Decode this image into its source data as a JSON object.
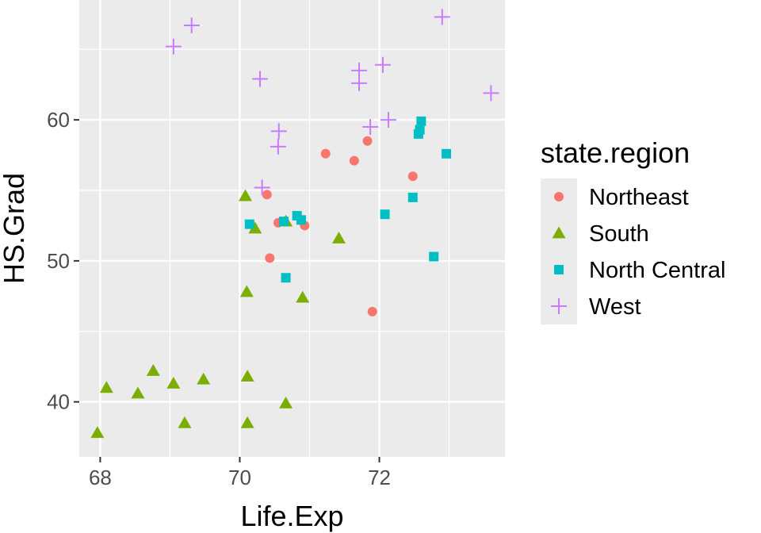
{
  "chart_data": {
    "type": "scatter",
    "title": "",
    "xlabel": "Life.Exp",
    "ylabel": "HS.Grad",
    "xlim": [
      67.7,
      73.8
    ],
    "ylim": [
      36.1,
      68.5
    ],
    "x_ticks": [
      68,
      70,
      72
    ],
    "x_tick_labels": [
      "68",
      "70",
      "72"
    ],
    "y_ticks": [
      40,
      50,
      60
    ],
    "y_tick_labels": [
      "40",
      "50",
      "60"
    ],
    "grid": true,
    "legend": {
      "title": "state.region",
      "position": "right",
      "entries": [
        "Northeast",
        "South",
        "North Central",
        "West"
      ]
    },
    "series": [
      {
        "name": "Northeast",
        "shape": "circle",
        "color": "#F8766D",
        "points": [
          [
            72.48,
            56.0
          ],
          [
            71.83,
            58.5
          ],
          [
            71.23,
            57.6
          ],
          [
            71.64,
            57.1
          ],
          [
            70.39,
            54.7
          ],
          [
            70.55,
            52.7
          ],
          [
            70.43,
            50.2
          ],
          [
            70.93,
            52.5
          ],
          [
            71.9,
            46.4
          ]
        ]
      },
      {
        "name": "South",
        "shape": "triangle",
        "color": "#7CAE00",
        "points": [
          [
            67.96,
            37.8
          ],
          [
            68.09,
            41.0
          ],
          [
            68.54,
            40.6
          ],
          [
            68.76,
            42.2
          ],
          [
            69.05,
            41.3
          ],
          [
            69.21,
            38.5
          ],
          [
            69.48,
            41.6
          ],
          [
            70.11,
            41.8
          ],
          [
            70.11,
            38.5
          ],
          [
            70.66,
            39.9
          ],
          [
            70.08,
            54.6
          ],
          [
            70.22,
            52.3
          ],
          [
            70.66,
            52.8
          ],
          [
            71.42,
            51.6
          ],
          [
            70.1,
            47.8
          ],
          [
            70.9,
            47.4
          ]
        ]
      },
      {
        "name": "North Central",
        "shape": "square",
        "color": "#00BFC4",
        "points": [
          [
            72.6,
            59.9
          ],
          [
            72.56,
            59.0
          ],
          [
            72.58,
            59.3
          ],
          [
            72.96,
            57.6
          ],
          [
            72.48,
            54.5
          ],
          [
            72.08,
            53.3
          ],
          [
            70.14,
            52.6
          ],
          [
            70.63,
            52.8
          ],
          [
            70.82,
            53.2
          ],
          [
            70.88,
            52.9
          ],
          [
            70.66,
            48.8
          ],
          [
            72.78,
            50.3
          ]
        ]
      },
      {
        "name": "West",
        "shape": "cross",
        "color": "#C77CFF",
        "points": [
          [
            69.05,
            65.2
          ],
          [
            69.31,
            66.7
          ],
          [
            72.9,
            67.3
          ],
          [
            70.29,
            62.9
          ],
          [
            71.71,
            63.5
          ],
          [
            71.71,
            62.6
          ],
          [
            72.05,
            63.9
          ],
          [
            73.6,
            61.9
          ],
          [
            72.13,
            60.0
          ],
          [
            71.87,
            59.5
          ],
          [
            70.56,
            59.2
          ],
          [
            70.55,
            58.1
          ],
          [
            70.32,
            55.2
          ]
        ]
      }
    ]
  }
}
